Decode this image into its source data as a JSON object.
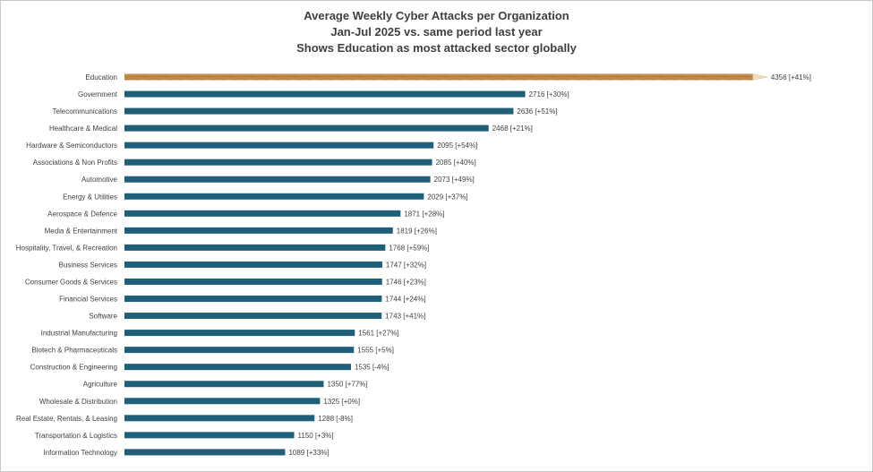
{
  "chart_data": {
    "type": "bar",
    "orientation": "horizontal",
    "title": "Average Weekly Cyber Attacks per Organization",
    "subtitle_lines": [
      "Jan-Jul 2025 vs. same period last year",
      "Shows Education as most attacked sector globally"
    ],
    "categories": [
      "Education",
      "Government",
      "Telecommunications",
      "Healthcare & Medical",
      "Hardware & Semiconductors",
      "Associations & Non Profits",
      "Automotive",
      "Energy & Utilities",
      "Aerospace & Defence",
      "Media & Entertainment",
      "Hospitality, Travel, & Recreation",
      "Business Services",
      "Consumer Goods & Services",
      "Financial Services",
      "Software",
      "Industrial Manufacturing",
      "Biotech & Pharmaceuticals",
      "Construction & Engineering",
      "Agriculture",
      "Wholesale & Distribution",
      "Real Estate, Rentals, & Leasing",
      "Transportation & Logistics",
      "Information Technology"
    ],
    "values": [
      4356,
      2716,
      2636,
      2468,
      2095,
      2085,
      2073,
      2029,
      1871,
      1819,
      1768,
      1747,
      1746,
      1744,
      1743,
      1561,
      1555,
      1535,
      1350,
      1325,
      1288,
      1150,
      1089
    ],
    "data_labels": [
      "4356 [+41%]",
      "2716 [+30%]",
      "2636 [+51%]",
      "2468 [+21%]",
      "2095 [+54%]",
      "2085 [+40%]",
      "2073 [+49%]",
      "2029 [+37%]",
      "1871 [+28%]",
      "1819 [+26%]",
      "1768 [+59%]",
      "1747 [+32%]",
      "1746 [+23%]",
      "1744 [+24%]",
      "1743 [+41%]",
      "1561 [+27%]",
      "1555 [+5%]",
      "1535 [-4%]",
      "1350 [+77%]",
      "1325 [+0%]",
      "1288 [-8%]",
      "1150 [+3%]",
      "1089 [+33%]"
    ],
    "bar_color": "#1f5f7a",
    "highlight_category": "Education",
    "highlight_style": "pencil",
    "xlim": [
      0,
      4800
    ],
    "grid": false,
    "legend": "none"
  }
}
